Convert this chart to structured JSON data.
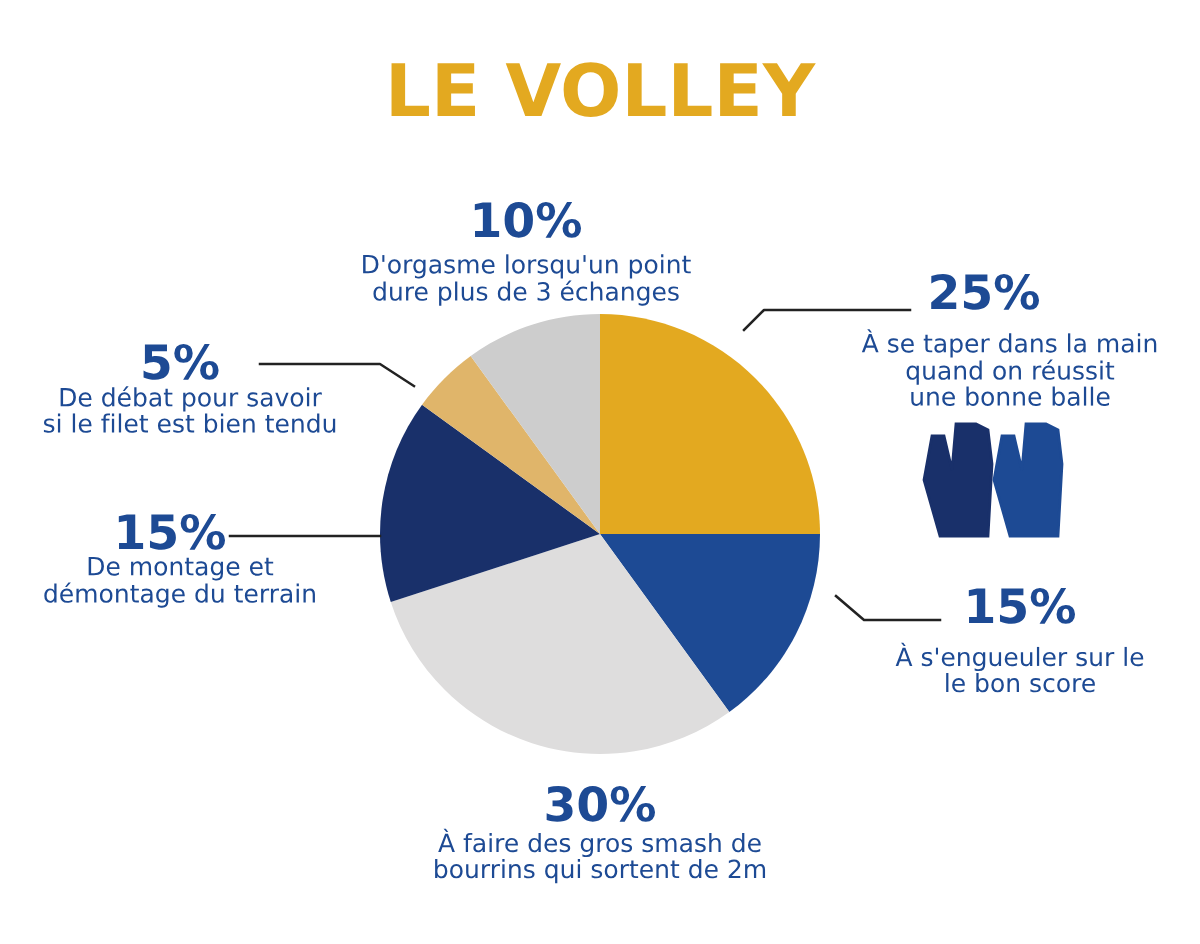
{
  "chart_data": {
    "type": "pie",
    "title": "LE VOLLEY",
    "categories": [
      "À se taper dans la main\nquand on réussit\nune bonne balle",
      "À s'engueuler sur le\nle bon score",
      "À faire des gros smash de\nbourrins qui sortent de 2m",
      "De montage et\ndémontage du terrain",
      "De débat pour savoir\nsi le filet est bien tendu",
      "D'orgasme lorsqu'un point\ndure plus de 3 échanges"
    ],
    "values": [
      25,
      15,
      30,
      15,
      5,
      10
    ],
    "value_labels": [
      "25%",
      "15%",
      "30%",
      "15%",
      "5%",
      "10%"
    ],
    "colors": [
      "#e3a920",
      "#1d4a94",
      "#dedddd",
      "#19306a",
      "#e0b56a",
      "#cdcdcd"
    ]
  }
}
